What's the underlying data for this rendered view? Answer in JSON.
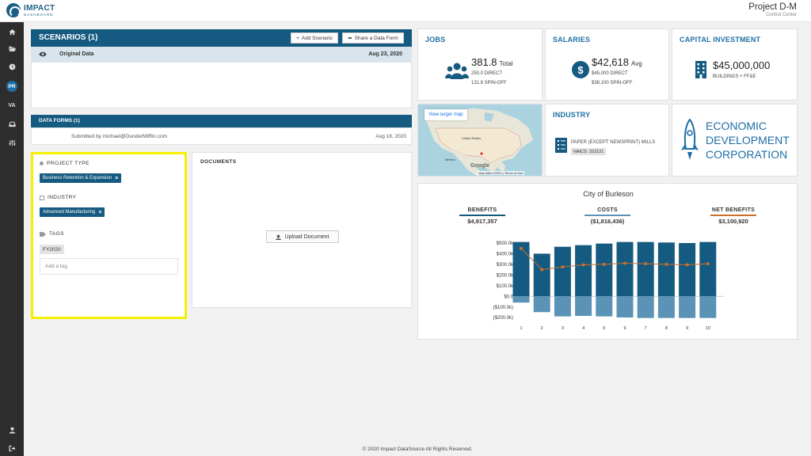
{
  "brand": {
    "name": "IMPACT",
    "sub": "DASHBOARD"
  },
  "header": {
    "title": "Project D-M",
    "subtitle": "Control Center"
  },
  "nav": {
    "pr": "PR",
    "va": "VA"
  },
  "scenarios": {
    "title": "SCENARIOS (1)",
    "add_label": "Add Scenario",
    "share_label": "Share a Data Form",
    "row_name": "Original Data",
    "row_date": "Aug 23, 2020"
  },
  "data_forms": {
    "title": "DATA FORMS (1)",
    "submitted": "Submitted by michael@DunderMifflin.com",
    "date": "Aug 18, 2020"
  },
  "tags_panel": {
    "project_type_label": "PROJECT TYPE",
    "project_type_chip": "Business Retention & Expansion",
    "industry_label": "INDUSTRY",
    "industry_chip": "Advanced Manufacturing",
    "tags_label": "TAGS",
    "tag": "FY2020",
    "add_tag_placeholder": "Add a tag"
  },
  "documents": {
    "title": "DOCUMENTS",
    "upload_label": "Upload Document"
  },
  "jobs": {
    "title": "JOBS",
    "value": "381.8",
    "unit": "Total",
    "direct": "250.0 DIRECT",
    "spinoff": "131.8 SPIN-OFF"
  },
  "salaries": {
    "title": "SALARIES",
    "value": "$42,618",
    "unit": "Avg",
    "direct": "$45,000 DIRECT",
    "spinoff": "$38,100 SPIN-OFF"
  },
  "capital": {
    "title": "CAPITAL INVESTMENT",
    "value": "$45,000,000",
    "sub": "BUILDINGS + FF&E"
  },
  "map": {
    "button": "View larger map",
    "country": "United States",
    "mexico": "Mexico",
    "google": "Google",
    "footer": "Map data ©2020  |  Terms of Use"
  },
  "industry": {
    "title": "INDUSTRY",
    "desc": "PAPER (EXCEPT NEWSPRINT) MILLS",
    "naics": "NAICS: 322121"
  },
  "edc": {
    "line1": "ECONOMIC",
    "line2": "DEVELOPMENT",
    "line3": "CORPORATION"
  },
  "colors": {
    "primary": "#155a80",
    "accent": "#1e6ea6",
    "costs_bar": "#5a93b5",
    "net": "#c9702a",
    "highlight": "#f5f000"
  },
  "chart_data": {
    "type": "bar",
    "title": "City of Burleson",
    "kpis": [
      {
        "label": "BENEFITS",
        "value": "$4,917,357",
        "color": "#155a80"
      },
      {
        "label": "COSTS",
        "value": "($1,816,436)",
        "color": "#5a93b5"
      },
      {
        "label": "NET BENEFITS",
        "value": "$3,100,920",
        "color": "#c9702a"
      }
    ],
    "categories": [
      "1",
      "2",
      "3",
      "4",
      "5",
      "6",
      "7",
      "8",
      "9",
      "10"
    ],
    "series": [
      {
        "name": "BENEFITS",
        "values": [
          510000,
          400000,
          465000,
          480000,
          495000,
          510000,
          510000,
          505000,
          500000,
          510000
        ]
      },
      {
        "name": "COSTS",
        "values": [
          -60000,
          -150000,
          -190000,
          -185000,
          -190000,
          -200000,
          -205000,
          -205000,
          -205000,
          -205000
        ]
      },
      {
        "name": "NET BENEFITS",
        "values": [
          450000,
          250000,
          275000,
          295000,
          300000,
          310000,
          305000,
          300000,
          295000,
          305000
        ]
      }
    ],
    "y_ticks": [
      "$500.0k",
      "$400.0k",
      "$300.0k",
      "$200.0k",
      "$100.0k",
      "$0.0",
      "($100.0k)",
      "($200.0k)"
    ],
    "ylim": [
      -200000,
      500000
    ]
  }
}
